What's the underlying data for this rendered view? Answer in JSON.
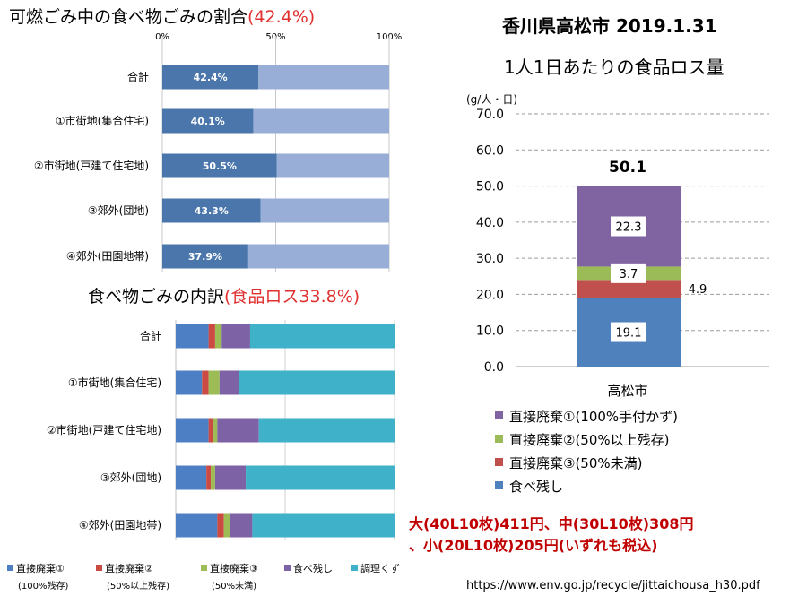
{
  "chart_data": [
    {
      "type": "bar",
      "orientation": "horizontal",
      "stacked": true,
      "title": "可燃ごみ中の食べ物ごみの割合",
      "title_highlight": "(42.4%)",
      "categories": [
        "合計",
        "①市街地(集合住宅)",
        "②市街地(戸建て住宅地)",
        "③郊外(団地)",
        "④郊外(田園地帯)"
      ],
      "axis_ticks": [
        "0%",
        "50%",
        "100%"
      ],
      "xlim": [
        0,
        100
      ],
      "series": [
        {
          "values": [
            42.4,
            40.1,
            50.5,
            43.3,
            37.9
          ],
          "color": "#4a76ab"
        },
        {
          "values": [
            57.6,
            59.9,
            49.5,
            56.7,
            62.1
          ],
          "color": "#98aed6"
        }
      ],
      "data_labels": [
        "42.4%",
        "40.1%",
        "50.5%",
        "43.3%",
        "37.9%"
      ],
      "grid": true
    },
    {
      "type": "bar",
      "orientation": "horizontal",
      "stacked": true,
      "title": "食べ物ごみの内訳",
      "title_highlight": "(食品ロス33.8%)",
      "categories": [
        "合計",
        "①市街地(集合住宅)",
        "②市街地(戸建て住宅地)",
        "③郊外(団地)",
        "④郊外(田園地帯)"
      ],
      "xlim": [
        0,
        100
      ],
      "series": [
        {
          "name": "直接廃棄①",
          "sub": "(100%残存)",
          "color": "#4d7fc4",
          "values": [
            15,
            12,
            15,
            14,
            19
          ]
        },
        {
          "name": "直接廃棄②",
          "sub": "(50%以上残存)",
          "color": "#cb4a44",
          "values": [
            3,
            3,
            2,
            2,
            3
          ]
        },
        {
          "name": "直接廃棄③",
          "sub": "(50%未満)",
          "color": "#9ebc55",
          "values": [
            3,
            5,
            2,
            2,
            3
          ]
        },
        {
          "name": "食べ残し",
          "sub": "",
          "color": "#7e62a6",
          "values": [
            13,
            9,
            19,
            14,
            10
          ]
        },
        {
          "name": "調理くず",
          "sub": "",
          "color": "#3fb1c9",
          "values": [
            66,
            71,
            62,
            68,
            65
          ]
        }
      ],
      "grid": true,
      "legend_position": "bottom"
    },
    {
      "type": "bar",
      "stacked": true,
      "title": "香川県高松市 2019.1.31",
      "subtitle": "1人1日あたりの食品ロス量",
      "ylabel": "(g/人・日)",
      "ylim": [
        0,
        70
      ],
      "yticks": [
        "0.0",
        "10.0",
        "20.0",
        "30.0",
        "40.0",
        "50.0",
        "60.0",
        "70.0"
      ],
      "categories": [
        "高松市"
      ],
      "total_label": "50.1",
      "series": [
        {
          "name": "食べ残し",
          "color": "#4f81bd",
          "values": [
            19.1
          ],
          "label": "19.1"
        },
        {
          "name": "直接廃棄③(50%未満)",
          "color": "#c0504d",
          "values": [
            4.9
          ],
          "label": "4.9"
        },
        {
          "name": "直接廃棄②(50%以上残存)",
          "color": "#9bbb59",
          "values": [
            3.7
          ],
          "label": "3.7"
        },
        {
          "name": "直接廃棄①(100%手付かず)",
          "color": "#8064a2",
          "values": [
            22.3
          ],
          "label": "22.3"
        }
      ],
      "legend_order": [
        3,
        2,
        1,
        0
      ],
      "legend_position": "bottom",
      "grid": true
    }
  ],
  "price_note": {
    "line1": "大(40L10枚)411円、中(30L10枚)308円",
    "line2": "、小(20L10枚)205円(いずれも税込)"
  },
  "source_url": "https://www.env.go.jp/recycle/jittaichousa_h30.pdf",
  "colors": {
    "highlight": "#e03030",
    "note": "#c00000"
  }
}
